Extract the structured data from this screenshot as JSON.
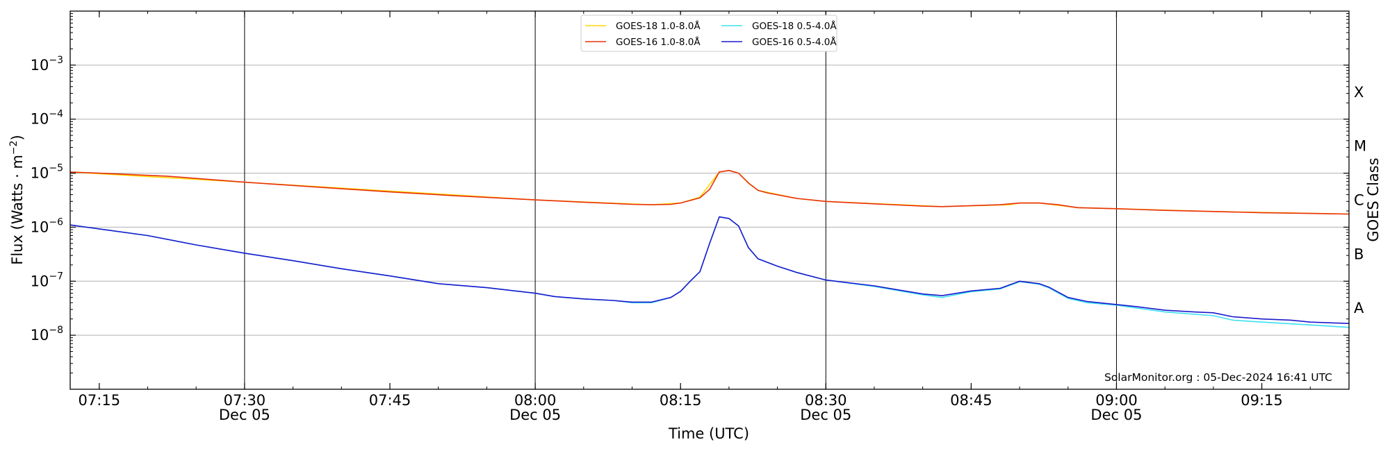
{
  "chart_data": {
    "type": "line",
    "xlabel": "Time (UTC)",
    "ylabel_main": "Flux (Watts · m",
    "ylabel_sup": "−2",
    "ylabel_close": ")",
    "right_axis_label": "GOES Class",
    "credit": "SolarMonitor.org : 05-Dec-2024 16:41 UTC",
    "yscale": "log",
    "ylim": [
      1e-09,
      0.01
    ],
    "xlim": [
      "07:12",
      "09:24"
    ],
    "grid": "horizontal at decades, vertical at 30-minute marks",
    "legend_position": "top-center",
    "y_ticks": [
      {
        "exp": -8,
        "base": "10",
        "power": "−8"
      },
      {
        "exp": -7,
        "base": "10",
        "power": "−7"
      },
      {
        "exp": -6,
        "base": "10",
        "power": "−6"
      },
      {
        "exp": -5,
        "base": "10",
        "power": "−5"
      },
      {
        "exp": -4,
        "base": "10",
        "power": "−4"
      },
      {
        "exp": -3,
        "base": "10",
        "power": "−3"
      }
    ],
    "x_ticks": [
      {
        "time": "07:15",
        "label": "07:15",
        "date": ""
      },
      {
        "time": "07:30",
        "label": "07:30",
        "date": "Dec 05"
      },
      {
        "time": "07:45",
        "label": "07:45",
        "date": ""
      },
      {
        "time": "08:00",
        "label": "08:00",
        "date": "Dec 05"
      },
      {
        "time": "08:15",
        "label": "08:15",
        "date": ""
      },
      {
        "time": "08:30",
        "label": "08:30",
        "date": "Dec 05"
      },
      {
        "time": "08:45",
        "label": "08:45",
        "date": ""
      },
      {
        "time": "09:00",
        "label": "09:00",
        "date": "Dec 05"
      },
      {
        "time": "09:15",
        "label": "09:15",
        "date": ""
      }
    ],
    "goes_classes": [
      {
        "label": "A",
        "exp": -7.5
      },
      {
        "label": "B",
        "exp": -6.5
      },
      {
        "label": "C",
        "exp": -5.5
      },
      {
        "label": "M",
        "exp": -4.5
      },
      {
        "label": "X",
        "exp": -3.5
      }
    ],
    "series": [
      {
        "name": "GOES-18 1.0-8.0Å",
        "color": "#ffd700",
        "points": [
          [
            "07:12",
            1.05e-05
          ],
          [
            "07:30",
            6.8e-06
          ],
          [
            "08:00",
            3.2e-06
          ],
          [
            "08:12",
            2.6e-06
          ],
          [
            "08:15",
            2.8e-06
          ],
          [
            "08:17",
            3.6e-06
          ],
          [
            "08:19",
            1.05e-05
          ],
          [
            "08:20",
            1.12e-05
          ],
          [
            "08:21",
            1e-05
          ],
          [
            "08:22",
            6.5e-06
          ],
          [
            "08:23",
            4.8e-06
          ],
          [
            "08:27",
            3.4e-06
          ],
          [
            "08:30",
            3e-06
          ],
          [
            "08:42",
            2.4e-06
          ],
          [
            "08:49",
            2.6e-06
          ],
          [
            "08:50",
            2.8e-06
          ],
          [
            "08:52",
            2.8e-06
          ],
          [
            "08:56",
            2.3e-06
          ],
          [
            "09:00",
            2.2e-06
          ],
          [
            "09:10",
            1.95e-06
          ],
          [
            "09:24",
            1.75e-06
          ]
        ]
      },
      {
        "name": "GOES-16 1.0-8.0Å",
        "color": "#e8300a",
        "points": [
          [
            "07:12",
            1.05e-05
          ],
          [
            "07:15",
            1e-05
          ],
          [
            "07:22",
            8.8e-06
          ],
          [
            "07:30",
            6.8e-06
          ],
          [
            "07:37",
            5.6e-06
          ],
          [
            "07:45",
            4.5e-06
          ],
          [
            "07:52",
            3.8e-06
          ],
          [
            "08:00",
            3.2e-06
          ],
          [
            "08:05",
            2.9e-06
          ],
          [
            "08:10",
            2.65e-06
          ],
          [
            "08:12",
            2.6e-06
          ],
          [
            "08:14",
            2.65e-06
          ],
          [
            "08:15",
            2.8e-06
          ],
          [
            "08:17",
            3.5e-06
          ],
          [
            "08:18",
            5e-06
          ],
          [
            "08:19",
            1.05e-05
          ],
          [
            "08:20",
            1.12e-05
          ],
          [
            "08:21",
            1e-05
          ],
          [
            "08:22",
            6.6e-06
          ],
          [
            "08:23",
            4.8e-06
          ],
          [
            "08:24",
            4.3e-06
          ],
          [
            "08:27",
            3.4e-06
          ],
          [
            "08:30",
            3e-06
          ],
          [
            "08:35",
            2.7e-06
          ],
          [
            "08:40",
            2.45e-06
          ],
          [
            "08:42",
            2.4e-06
          ],
          [
            "08:45",
            2.5e-06
          ],
          [
            "08:48",
            2.6e-06
          ],
          [
            "08:50",
            2.8e-06
          ],
          [
            "08:52",
            2.8e-06
          ],
          [
            "08:54",
            2.6e-06
          ],
          [
            "08:56",
            2.3e-06
          ],
          [
            "09:00",
            2.2e-06
          ],
          [
            "09:05",
            2.05e-06
          ],
          [
            "09:10",
            1.95e-06
          ],
          [
            "09:15",
            1.85e-06
          ],
          [
            "09:20",
            1.8e-06
          ],
          [
            "09:24",
            1.75e-06
          ]
        ]
      },
      {
        "name": "GOES-18 0.5-4.0Å",
        "color": "#3ce0f0",
        "points": [
          [
            "07:12",
            1.1e-06
          ],
          [
            "07:15",
            9.3e-07
          ],
          [
            "07:20",
            7e-07
          ],
          [
            "07:25",
            4.7e-07
          ],
          [
            "07:30",
            3.3e-07
          ],
          [
            "07:35",
            2.4e-07
          ],
          [
            "07:40",
            1.7e-07
          ],
          [
            "07:45",
            1.25e-07
          ],
          [
            "07:50",
            9e-08
          ],
          [
            "07:55",
            7.6e-08
          ],
          [
            "08:00",
            6e-08
          ],
          [
            "08:02",
            5.2e-08
          ],
          [
            "08:05",
            4.7e-08
          ],
          [
            "08:08",
            4.4e-08
          ],
          [
            "08:10",
            4e-08
          ],
          [
            "08:12",
            4e-08
          ],
          [
            "08:14",
            5e-08
          ],
          [
            "08:15",
            6.5e-08
          ],
          [
            "08:16",
            1e-07
          ],
          [
            "08:17",
            1.5e-07
          ],
          [
            "08:18",
            5e-07
          ],
          [
            "08:19",
            1.55e-06
          ],
          [
            "08:20",
            1.45e-06
          ],
          [
            "08:21",
            1.05e-06
          ],
          [
            "08:22",
            4.2e-07
          ],
          [
            "08:23",
            2.6e-07
          ],
          [
            "08:25",
            1.9e-07
          ],
          [
            "08:27",
            1.45e-07
          ],
          [
            "08:30",
            1.05e-07
          ],
          [
            "08:35",
            8e-08
          ],
          [
            "08:40",
            5.6e-08
          ],
          [
            "08:42",
            5e-08
          ],
          [
            "08:45",
            6.4e-08
          ],
          [
            "08:48",
            7.2e-08
          ],
          [
            "08:50",
            9.8e-08
          ],
          [
            "08:52",
            8.8e-08
          ],
          [
            "08:53",
            7.6e-08
          ],
          [
            "08:55",
            4.8e-08
          ],
          [
            "08:57",
            4e-08
          ],
          [
            "09:00",
            3.6e-08
          ],
          [
            "09:02",
            3.2e-08
          ],
          [
            "09:05",
            2.7e-08
          ],
          [
            "09:10",
            2.3e-08
          ],
          [
            "09:12",
            1.9e-08
          ],
          [
            "09:15",
            1.75e-08
          ],
          [
            "09:20",
            1.55e-08
          ],
          [
            "09:24",
            1.4e-08
          ]
        ]
      },
      {
        "name": "GOES-16 0.5-4.0Å",
        "color": "#1a1acc",
        "points": [
          [
            "07:12",
            1.1e-06
          ],
          [
            "07:15",
            9.3e-07
          ],
          [
            "07:20",
            7e-07
          ],
          [
            "07:25",
            4.7e-07
          ],
          [
            "07:30",
            3.3e-07
          ],
          [
            "07:35",
            2.4e-07
          ],
          [
            "07:40",
            1.7e-07
          ],
          [
            "07:45",
            1.25e-07
          ],
          [
            "07:50",
            9e-08
          ],
          [
            "07:55",
            7.6e-08
          ],
          [
            "08:00",
            6e-08
          ],
          [
            "08:02",
            5.2e-08
          ],
          [
            "08:05",
            4.7e-08
          ],
          [
            "08:08",
            4.4e-08
          ],
          [
            "08:10",
            4.1e-08
          ],
          [
            "08:12",
            4.1e-08
          ],
          [
            "08:14",
            5e-08
          ],
          [
            "08:15",
            6.5e-08
          ],
          [
            "08:16",
            1e-07
          ],
          [
            "08:17",
            1.5e-07
          ],
          [
            "08:18",
            5e-07
          ],
          [
            "08:19",
            1.55e-06
          ],
          [
            "08:20",
            1.45e-06
          ],
          [
            "08:21",
            1.05e-06
          ],
          [
            "08:22",
            4.2e-07
          ],
          [
            "08:23",
            2.6e-07
          ],
          [
            "08:25",
            1.9e-07
          ],
          [
            "08:27",
            1.45e-07
          ],
          [
            "08:30",
            1.05e-07
          ],
          [
            "08:35",
            8.2e-08
          ],
          [
            "08:40",
            5.8e-08
          ],
          [
            "08:42",
            5.4e-08
          ],
          [
            "08:45",
            6.6e-08
          ],
          [
            "08:48",
            7.4e-08
          ],
          [
            "08:50",
            1e-07
          ],
          [
            "08:52",
            9e-08
          ],
          [
            "08:53",
            7.8e-08
          ],
          [
            "08:55",
            5e-08
          ],
          [
            "08:57",
            4.2e-08
          ],
          [
            "09:00",
            3.7e-08
          ],
          [
            "09:02",
            3.4e-08
          ],
          [
            "09:05",
            2.9e-08
          ],
          [
            "09:08",
            2.7e-08
          ],
          [
            "09:10",
            2.6e-08
          ],
          [
            "09:12",
            2.2e-08
          ],
          [
            "09:15",
            2e-08
          ],
          [
            "09:18",
            1.9e-08
          ],
          [
            "09:20",
            1.75e-08
          ],
          [
            "09:24",
            1.65e-08
          ]
        ]
      }
    ]
  }
}
